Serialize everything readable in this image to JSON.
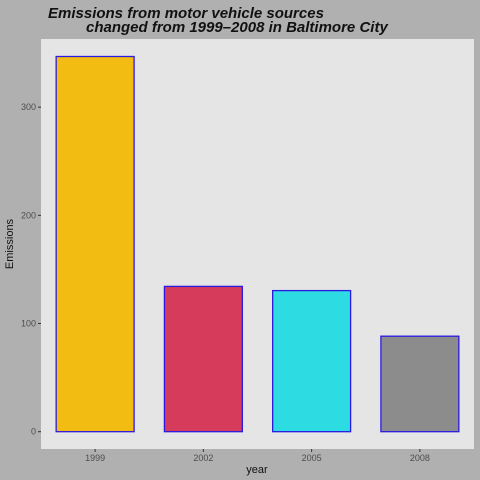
{
  "chart_data": {
    "type": "bar",
    "title": [
      "Emissions from motor vehicle sources",
      "changed from 1999–2008 in Baltimore City"
    ],
    "xlabel": "year",
    "ylabel": "Emissions",
    "categories": [
      "1999",
      "2002",
      "2005",
      "2008"
    ],
    "values": [
      346.82,
      134.31,
      130.43,
      88.28
    ],
    "ylim": [
      -16,
      363
    ],
    "yticks": [
      0,
      100,
      200,
      300
    ],
    "grid": false,
    "legend": "none",
    "colors": {
      "bars": [
        "#f2bc13",
        "#d63b5b",
        "#2cdce2",
        "#8c8c8c"
      ],
      "bar_outline": "#2b1ae0",
      "panel_background": "#e5e5e5",
      "plot_background": "#b0b0b0"
    }
  }
}
